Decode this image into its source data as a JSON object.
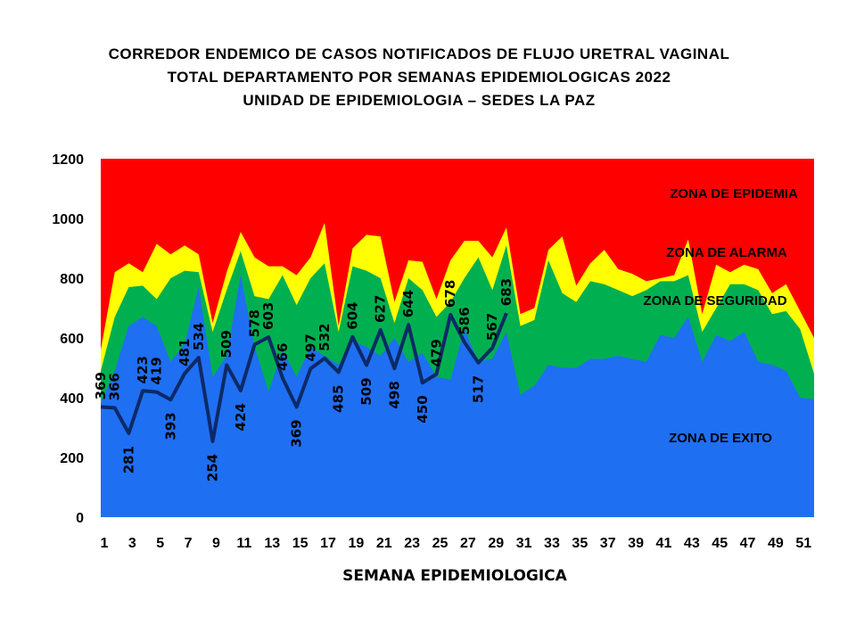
{
  "titles": [
    "CORREDOR ENDEMICO  DE CASOS NOTIFICADOS  DE FLUJO URETRAL VAGINAL",
    "TOTAL DEPARTAMENTO  POR SEMANAS EPIDEMIOLOGICAS  2022",
    "UNIDAD  DE EPIDEMIOLOGIA  – SEDES LA PAZ"
  ],
  "chart_data": {
    "type": "area",
    "xlabel": "SEMANA EPIDEMIOLOGICA",
    "ylabel": "",
    "ylim": [
      0,
      1200
    ],
    "yticks": [
      0,
      200,
      400,
      600,
      800,
      1000,
      1200
    ],
    "xticks": [
      1,
      3,
      5,
      7,
      9,
      11,
      13,
      15,
      17,
      19,
      21,
      23,
      25,
      27,
      29,
      31,
      33,
      35,
      37,
      39,
      41,
      43,
      45,
      47,
      49,
      51
    ],
    "weeks": [
      1,
      2,
      3,
      4,
      5,
      6,
      7,
      8,
      9,
      10,
      11,
      12,
      13,
      14,
      15,
      16,
      17,
      18,
      19,
      20,
      21,
      22,
      23,
      24,
      25,
      26,
      27,
      28,
      29,
      30,
      31,
      32,
      33,
      34,
      35,
      36,
      37,
      38,
      39,
      40,
      41,
      42,
      43,
      44,
      45,
      46,
      47,
      48,
      49,
      50,
      51,
      52
    ],
    "colors": {
      "epidemia": "#ff0000",
      "alarma": "#ffff00",
      "seguridad": "#00b050",
      "exito": "#1f6ff2",
      "line": "#0c2a66"
    },
    "zone_labels": {
      "epidemia": "ZONA DE EPIDEMIA",
      "alarma": "ZONA DE ALARMA",
      "seguridad": "ZONA DE  SEGURIDAD",
      "exito": "ZONA DE  EXITO"
    },
    "epidemia_top": 1200,
    "alarma_top": [
      560,
      820,
      850,
      820,
      915,
      880,
      910,
      880,
      650,
      820,
      955,
      870,
      840,
      840,
      810,
      870,
      985,
      640,
      900,
      945,
      940,
      720,
      860,
      855,
      730,
      860,
      925,
      925,
      870,
      970,
      680,
      700,
      895,
      940,
      775,
      850,
      895,
      830,
      815,
      790,
      800,
      810,
      930,
      680,
      845,
      820,
      845,
      830,
      750,
      780,
      690,
      600
    ],
    "seguridad_top": [
      490,
      670,
      770,
      775,
      730,
      800,
      825,
      820,
      620,
      760,
      890,
      740,
      730,
      810,
      710,
      800,
      850,
      620,
      840,
      825,
      800,
      650,
      800,
      760,
      670,
      720,
      800,
      870,
      760,
      910,
      640,
      660,
      860,
      750,
      720,
      790,
      780,
      760,
      740,
      760,
      790,
      790,
      810,
      620,
      700,
      780,
      780,
      760,
      680,
      690,
      630,
      480
    ],
    "exito_top": [
      380,
      490,
      640,
      670,
      640,
      520,
      580,
      770,
      470,
      540,
      810,
      570,
      420,
      560,
      470,
      570,
      540,
      510,
      590,
      570,
      540,
      600,
      520,
      550,
      470,
      460,
      630,
      520,
      530,
      620,
      410,
      440,
      510,
      500,
      500,
      530,
      530,
      540,
      530,
      520,
      610,
      600,
      670,
      520,
      610,
      590,
      620,
      520,
      510,
      490,
      400,
      395
    ],
    "series": [
      {
        "name": "",
        "values": [
          369,
          366,
          281,
          423,
          419,
          393,
          481,
          534,
          254,
          509,
          424,
          578,
          603,
          466,
          369,
          497,
          532,
          485,
          604,
          509,
          627,
          498,
          644,
          450,
          479,
          678,
          586,
          517,
          567,
          683
        ]
      }
    ]
  }
}
